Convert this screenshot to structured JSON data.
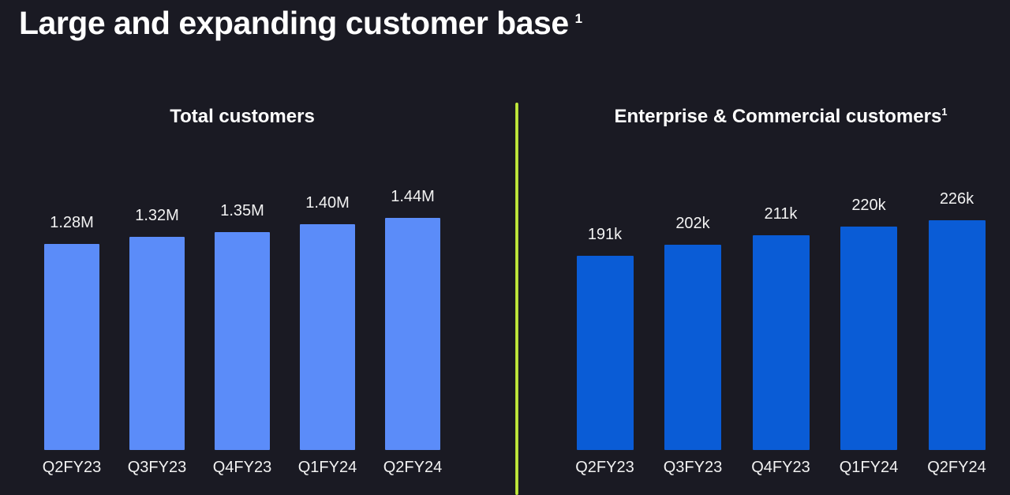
{
  "slide": {
    "title": "Large and expanding customer base",
    "title_footnote": "1"
  },
  "colors": {
    "background": "#1A1A23",
    "title_text": "#FFFFFF",
    "label_text": "#F2F2F2",
    "total_customers_bar": "#5B8CF9",
    "enterprise_commercial_bar": "#0A5CD6",
    "divider_accent": "#C3F13C"
  },
  "chart_data": [
    {
      "type": "bar",
      "title": "Total customers",
      "title_footnote": "",
      "categories": [
        "Q2FY23",
        "Q3FY23",
        "Q4FY23",
        "Q1FY24",
        "Q2FY24"
      ],
      "values": [
        1.28,
        1.32,
        1.35,
        1.4,
        1.44
      ],
      "value_labels": [
        "1.28M",
        "1.32M",
        "1.35M",
        "1.40M",
        "1.44M"
      ],
      "unit": "M",
      "ylim": [
        0,
        1.44
      ],
      "bar_color": "#5B8CF9",
      "grid": false,
      "legend": "none",
      "y_axis_shown": false
    },
    {
      "type": "bar",
      "title": "Enterprise & Commercial customers",
      "title_footnote": "1",
      "categories": [
        "Q2FY23",
        "Q3FY23",
        "Q4FY23",
        "Q1FY24",
        "Q2FY24"
      ],
      "values": [
        191,
        202,
        211,
        220,
        226
      ],
      "value_labels": [
        "191k",
        "202k",
        "211k",
        "220k",
        "226k"
      ],
      "unit": "k",
      "ylim": [
        0,
        226
      ],
      "bar_color": "#0A5CD6",
      "grid": false,
      "legend": "none",
      "y_axis_shown": false
    }
  ]
}
